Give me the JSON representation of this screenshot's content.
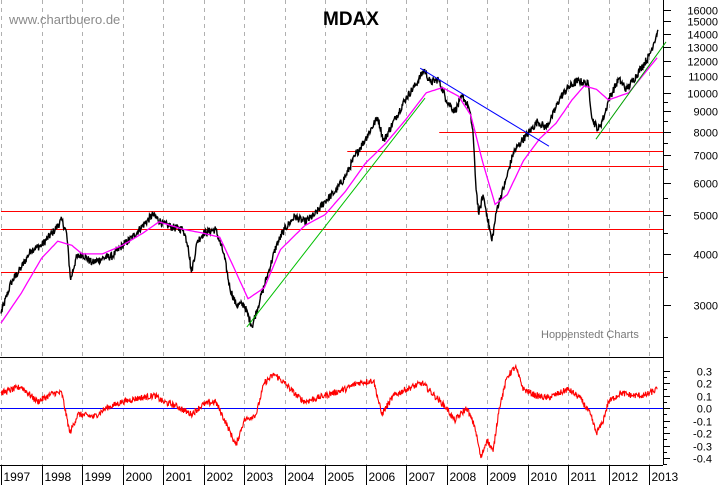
{
  "watermark": "www.chartbuero.de",
  "source": "Hoppenstedt Charts",
  "chart_data": [
    {
      "type": "line",
      "title": "MDAX",
      "yscale": "log",
      "ylim": [
        2300,
        16500
      ],
      "xlim": [
        1997.0,
        2013.3
      ],
      "grid": "vertical dashed at each year",
      "y_tick_labels": [
        "16000",
        "15000",
        "14000",
        "13000",
        "12000",
        "11000",
        "10000",
        "9000",
        "8000",
        "7000",
        "6000",
        "5000",
        "4000",
        "3000"
      ],
      "x_tick_labels": [
        "1997",
        "1998",
        "1999",
        "2000",
        "2001",
        "2002",
        "2003",
        "2004",
        "2005",
        "2006",
        "2007",
        "2008",
        "2009",
        "2010",
        "2011",
        "2012",
        "2013"
      ],
      "series": [
        {
          "color": "#000000",
          "points": [
            [
              1997.0,
              2850
            ],
            [
              1997.25,
              3400
            ],
            [
              1997.5,
              3700
            ],
            [
              1997.75,
              4100
            ],
            [
              1998.0,
              4200
            ],
            [
              1998.3,
              4550
            ],
            [
              1998.5,
              4850
            ],
            [
              1998.62,
              4500
            ],
            [
              1998.72,
              3450
            ],
            [
              1998.85,
              3900
            ],
            [
              1999.0,
              4000
            ],
            [
              1999.25,
              3800
            ],
            [
              1999.5,
              3900
            ],
            [
              1999.75,
              3950
            ],
            [
              2000.0,
              4200
            ],
            [
              2000.25,
              4400
            ],
            [
              2000.5,
              4700
            ],
            [
              2000.75,
              5000
            ],
            [
              2001.0,
              4750
            ],
            [
              2001.25,
              4650
            ],
            [
              2001.5,
              4600
            ],
            [
              2001.62,
              4200
            ],
            [
              2001.7,
              3600
            ],
            [
              2001.85,
              4300
            ],
            [
              2002.0,
              4500
            ],
            [
              2002.3,
              4600
            ],
            [
              2002.5,
              4000
            ],
            [
              2002.65,
              3300
            ],
            [
              2002.8,
              3000
            ],
            [
              2003.0,
              3000
            ],
            [
              2003.2,
              2650
            ],
            [
              2003.4,
              3100
            ],
            [
              2003.6,
              3600
            ],
            [
              2003.8,
              4200
            ],
            [
              2004.0,
              4600
            ],
            [
              2004.25,
              4950
            ],
            [
              2004.5,
              4800
            ],
            [
              2004.75,
              5000
            ],
            [
              2005.0,
              5400
            ],
            [
              2005.25,
              5700
            ],
            [
              2005.5,
              6200
            ],
            [
              2005.75,
              7000
            ],
            [
              2006.0,
              7700
            ],
            [
              2006.3,
              8700
            ],
            [
              2006.45,
              7600
            ],
            [
              2006.75,
              8700
            ],
            [
              2007.0,
              9700
            ],
            [
              2007.25,
              10500
            ],
            [
              2007.45,
              11400
            ],
            [
              2007.6,
              10600
            ],
            [
              2007.8,
              10800
            ],
            [
              2008.0,
              9600
            ],
            [
              2008.2,
              9000
            ],
            [
              2008.4,
              9800
            ],
            [
              2008.55,
              9200
            ],
            [
              2008.65,
              8100
            ],
            [
              2008.72,
              6000
            ],
            [
              2008.8,
              5000
            ],
            [
              2008.9,
              5600
            ],
            [
              2009.0,
              5000
            ],
            [
              2009.12,
              4300
            ],
            [
              2009.25,
              5200
            ],
            [
              2009.45,
              6000
            ],
            [
              2009.65,
              7100
            ],
            [
              2009.85,
              7600
            ],
            [
              2010.0,
              7900
            ],
            [
              2010.25,
              8500
            ],
            [
              2010.45,
              8200
            ],
            [
              2010.6,
              8700
            ],
            [
              2010.8,
              9700
            ],
            [
              2011.0,
              10300
            ],
            [
              2011.25,
              10700
            ],
            [
              2011.5,
              10500
            ],
            [
              2011.6,
              8600
            ],
            [
              2011.75,
              8100
            ],
            [
              2011.9,
              8800
            ],
            [
              2012.0,
              9600
            ],
            [
              2012.25,
              10800
            ],
            [
              2012.45,
              10200
            ],
            [
              2012.6,
              10700
            ],
            [
              2012.8,
              11500
            ],
            [
              2013.0,
              12300
            ],
            [
              2013.12,
              13300
            ],
            [
              2013.22,
              14300
            ]
          ]
        },
        {
          "color": "#ff00ff",
          "points": [
            [
              1997.0,
              2700
            ],
            [
              1997.5,
              3200
            ],
            [
              1998.0,
              3900
            ],
            [
              1998.4,
              4300
            ],
            [
              1998.75,
              4200
            ],
            [
              1999.0,
              4000
            ],
            [
              1999.5,
              4000
            ],
            [
              2000.0,
              4200
            ],
            [
              2000.5,
              4500
            ],
            [
              2000.9,
              4800
            ],
            [
              2001.5,
              4600
            ],
            [
              2002.0,
              4500
            ],
            [
              2002.4,
              4400
            ],
            [
              2002.75,
              3700
            ],
            [
              2003.1,
              3100
            ],
            [
              2003.5,
              3300
            ],
            [
              2003.9,
              4100
            ],
            [
              2004.5,
              4700
            ],
            [
              2005.0,
              5000
            ],
            [
              2005.5,
              5700
            ],
            [
              2006.0,
              6700
            ],
            [
              2006.5,
              7500
            ],
            [
              2007.0,
              8600
            ],
            [
              2007.5,
              10000
            ],
            [
              2007.9,
              10300
            ],
            [
              2008.3,
              9800
            ],
            [
              2008.6,
              8800
            ],
            [
              2008.9,
              6700
            ],
            [
              2009.2,
              5300
            ],
            [
              2009.5,
              5600
            ],
            [
              2009.9,
              6800
            ],
            [
              2010.3,
              7700
            ],
            [
              2010.7,
              8400
            ],
            [
              2011.1,
              9600
            ],
            [
              2011.4,
              10400
            ],
            [
              2011.7,
              10200
            ],
            [
              2012.0,
              9600
            ],
            [
              2012.5,
              10000
            ],
            [
              2012.9,
              11200
            ],
            [
              2013.2,
              12200
            ]
          ]
        }
      ],
      "horizontal_lines": [
        {
          "value": 3600,
          "from": 1997.0,
          "color": "#ff0000"
        },
        {
          "value": 4600,
          "from": 1997.0,
          "color": "#ff0000"
        },
        {
          "value": 5100,
          "from": 1997.0,
          "color": "#ff0000"
        },
        {
          "value": 6600,
          "from": 2005.67,
          "color": "#ff0000"
        },
        {
          "value": 7200,
          "from": 2005.55,
          "color": "#ff0000"
        },
        {
          "value": 8000,
          "from": 2007.82,
          "color": "#ff0000"
        }
      ],
      "trend_lines": [
        {
          "color": "#00c000",
          "from": [
            2003.07,
            2640
          ],
          "to": [
            2007.47,
            9700
          ]
        },
        {
          "color": "#00a000",
          "from": [
            2011.69,
            7680
          ],
          "to": [
            2013.42,
            13350
          ]
        },
        {
          "color": "#0000ff",
          "from": [
            2007.35,
            11500
          ],
          "to": [
            2010.53,
            7380
          ]
        }
      ]
    },
    {
      "type": "line",
      "ylim": [
        -0.45,
        0.38
      ],
      "y_tick_labels": [
        "0.3",
        "0.2",
        "0.1",
        "0.0",
        "-0.1",
        "-0.2",
        "-0.3",
        "-0.4"
      ],
      "zero_line_color": "#0000ff",
      "series": [
        {
          "color": "#ff0000",
          "points": [
            [
              1997.0,
              0.12
            ],
            [
              1997.5,
              0.17
            ],
            [
              1997.9,
              0.05
            ],
            [
              1998.3,
              0.12
            ],
            [
              1998.5,
              0.12
            ],
            [
              1998.7,
              -0.2
            ],
            [
              1998.9,
              -0.05
            ],
            [
              1999.3,
              -0.07
            ],
            [
              1999.6,
              0.0
            ],
            [
              2000.0,
              0.05
            ],
            [
              2000.4,
              0.08
            ],
            [
              2000.8,
              0.1
            ],
            [
              2001.0,
              0.05
            ],
            [
              2001.3,
              0.02
            ],
            [
              2001.7,
              -0.05
            ],
            [
              2002.0,
              0.03
            ],
            [
              2002.3,
              0.05
            ],
            [
              2002.6,
              -0.15
            ],
            [
              2002.8,
              -0.3
            ],
            [
              2003.0,
              -0.1
            ],
            [
              2003.3,
              -0.05
            ],
            [
              2003.5,
              0.2
            ],
            [
              2003.75,
              0.27
            ],
            [
              2004.0,
              0.2
            ],
            [
              2004.3,
              0.1
            ],
            [
              2004.5,
              0.05
            ],
            [
              2004.8,
              0.08
            ],
            [
              2005.0,
              0.1
            ],
            [
              2005.5,
              0.15
            ],
            [
              2005.8,
              0.2
            ],
            [
              2006.2,
              0.22
            ],
            [
              2006.4,
              -0.05
            ],
            [
              2006.7,
              0.1
            ],
            [
              2007.0,
              0.15
            ],
            [
              2007.4,
              0.2
            ],
            [
              2007.7,
              0.1
            ],
            [
              2008.0,
              0.0
            ],
            [
              2008.2,
              -0.1
            ],
            [
              2008.5,
              0.0
            ],
            [
              2008.7,
              -0.15
            ],
            [
              2008.85,
              -0.4
            ],
            [
              2009.0,
              -0.25
            ],
            [
              2009.15,
              -0.35
            ],
            [
              2009.3,
              0.0
            ],
            [
              2009.5,
              0.25
            ],
            [
              2009.7,
              0.33
            ],
            [
              2009.9,
              0.15
            ],
            [
              2010.2,
              0.1
            ],
            [
              2010.5,
              0.08
            ],
            [
              2010.8,
              0.12
            ],
            [
              2011.0,
              0.15
            ],
            [
              2011.3,
              0.08
            ],
            [
              2011.55,
              -0.05
            ],
            [
              2011.7,
              -0.2
            ],
            [
              2011.85,
              -0.12
            ],
            [
              2012.0,
              0.05
            ],
            [
              2012.3,
              0.12
            ],
            [
              2012.6,
              0.1
            ],
            [
              2012.9,
              0.1
            ],
            [
              2013.2,
              0.15
            ]
          ]
        }
      ]
    }
  ]
}
